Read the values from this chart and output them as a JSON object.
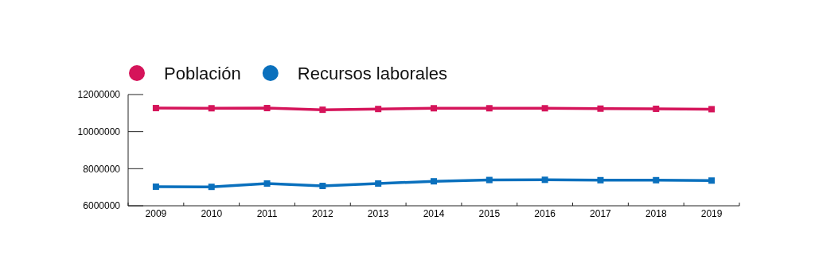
{
  "chart_data": {
    "type": "line",
    "categories": [
      "2009",
      "2010",
      "2011",
      "2012",
      "2013",
      "2014",
      "2015",
      "2016",
      "2017",
      "2018",
      "2019"
    ],
    "series": [
      {
        "name": "Población",
        "color": "#d5145a",
        "values": [
          11270000,
          11260000,
          11270000,
          11180000,
          11220000,
          11260000,
          11260000,
          11260000,
          11240000,
          11230000,
          11210000
        ]
      },
      {
        "name": "Recursos laborales",
        "color": "#0a70bd",
        "values": [
          7030000,
          7020000,
          7200000,
          7070000,
          7200000,
          7320000,
          7390000,
          7400000,
          7380000,
          7380000,
          7360000
        ]
      }
    ],
    "ylim": [
      6000000,
      12000000
    ],
    "yticks": [
      6000000,
      8000000,
      10000000,
      12000000
    ],
    "grid": false,
    "legend": "top left",
    "marker": "square",
    "line_style": "solid"
  }
}
